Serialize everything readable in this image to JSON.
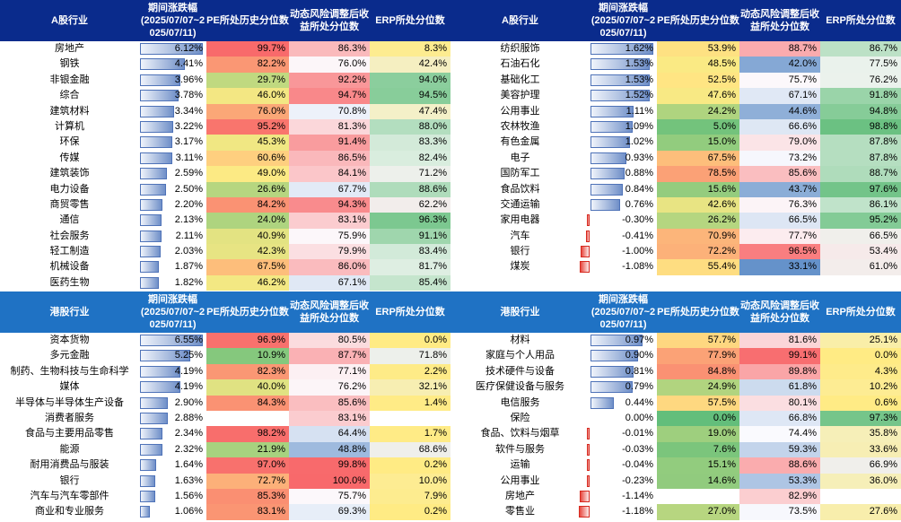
{
  "headers": {
    "a_industry": "A股行业",
    "h_industry": "港股行业",
    "change": "期间涨跌幅 (2025/07/07~2 025/07/11)",
    "pe": "PE所处历史分位数",
    "risk": "动态风险调整后收益所处分位数",
    "erp": "ERP所处分位数"
  },
  "colors": {
    "header_a": "#0a2b8c",
    "header_h": "#1f72c4",
    "bar_pos": "#6f8fc8",
    "bar_neg": "#e8483f"
  },
  "tables": {
    "a_left": [
      {
        "name": "房地产",
        "chg": "6.12%",
        "chg_num": 6.12,
        "pe": "99.7%",
        "pe_num": 99.7,
        "risk": "86.3%",
        "risk_num": 86.3,
        "erp": "8.3%",
        "erp_num": 8.3
      },
      {
        "name": "钢铁",
        "chg": "4.41%",
        "chg_num": 4.41,
        "pe": "82.2%",
        "pe_num": 82.2,
        "risk": "76.0%",
        "risk_num": 76.0,
        "erp": "42.4%",
        "erp_num": 42.4
      },
      {
        "name": "非银金融",
        "chg": "3.96%",
        "chg_num": 3.96,
        "pe": "29.7%",
        "pe_num": 29.7,
        "risk": "92.2%",
        "risk_num": 92.2,
        "erp": "94.0%",
        "erp_num": 94.0
      },
      {
        "name": "综合",
        "chg": "3.78%",
        "chg_num": 3.78,
        "pe": "46.0%",
        "pe_num": 46.0,
        "risk": "94.7%",
        "risk_num": 94.7,
        "erp": "94.5%",
        "erp_num": 94.5
      },
      {
        "name": "建筑材料",
        "chg": "3.34%",
        "chg_num": 3.34,
        "pe": "76.0%",
        "pe_num": 76.0,
        "risk": "70.8%",
        "risk_num": 70.8,
        "erp": "47.4%",
        "erp_num": 47.4
      },
      {
        "name": "计算机",
        "chg": "3.22%",
        "chg_num": 3.22,
        "pe": "95.2%",
        "pe_num": 95.2,
        "risk": "81.3%",
        "risk_num": 81.3,
        "erp": "88.0%",
        "erp_num": 88.0
      },
      {
        "name": "环保",
        "chg": "3.17%",
        "chg_num": 3.17,
        "pe": "45.3%",
        "pe_num": 45.3,
        "risk": "91.4%",
        "risk_num": 91.4,
        "erp": "83.3%",
        "erp_num": 83.3
      },
      {
        "name": "传媒",
        "chg": "3.11%",
        "chg_num": 3.11,
        "pe": "60.6%",
        "pe_num": 60.6,
        "risk": "86.5%",
        "risk_num": 86.5,
        "erp": "82.4%",
        "erp_num": 82.4
      },
      {
        "name": "建筑装饰",
        "chg": "2.59%",
        "chg_num": 2.59,
        "pe": "49.0%",
        "pe_num": 49.0,
        "risk": "84.1%",
        "risk_num": 84.1,
        "erp": "71.2%",
        "erp_num": 71.2
      },
      {
        "name": "电力设备",
        "chg": "2.50%",
        "chg_num": 2.5,
        "pe": "26.6%",
        "pe_num": 26.6,
        "risk": "67.7%",
        "risk_num": 67.7,
        "erp": "88.6%",
        "erp_num": 88.6
      },
      {
        "name": "商贸零售",
        "chg": "2.20%",
        "chg_num": 2.2,
        "pe": "84.2%",
        "pe_num": 84.2,
        "risk": "94.3%",
        "risk_num": 94.3,
        "erp": "62.2%",
        "erp_num": 62.2
      },
      {
        "name": "通信",
        "chg": "2.13%",
        "chg_num": 2.13,
        "pe": "24.0%",
        "pe_num": 24.0,
        "risk": "83.1%",
        "risk_num": 83.1,
        "erp": "96.3%",
        "erp_num": 96.3
      },
      {
        "name": "社会服务",
        "chg": "2.11%",
        "chg_num": 2.11,
        "pe": "40.9%",
        "pe_num": 40.9,
        "risk": "75.9%",
        "risk_num": 75.9,
        "erp": "91.1%",
        "erp_num": 91.1
      },
      {
        "name": "轻工制造",
        "chg": "2.03%",
        "chg_num": 2.03,
        "pe": "42.3%",
        "pe_num": 42.3,
        "risk": "79.9%",
        "risk_num": 79.9,
        "erp": "83.4%",
        "erp_num": 83.4
      },
      {
        "name": "机械设备",
        "chg": "1.87%",
        "chg_num": 1.87,
        "pe": "67.5%",
        "pe_num": 67.5,
        "risk": "86.0%",
        "risk_num": 86.0,
        "erp": "81.7%",
        "erp_num": 81.7
      },
      {
        "name": "医药生物",
        "chg": "1.82%",
        "chg_num": 1.82,
        "pe": "46.2%",
        "pe_num": 46.2,
        "risk": "67.1%",
        "risk_num": 67.1,
        "erp": "85.4%",
        "erp_num": 85.4
      }
    ],
    "a_right": [
      {
        "name": "纺织服饰",
        "chg": "1.62%",
        "chg_num": 1.62,
        "pe": "53.9%",
        "pe_num": 53.9,
        "risk": "88.7%",
        "risk_num": 88.7,
        "erp": "86.7%",
        "erp_num": 86.7
      },
      {
        "name": "石油石化",
        "chg": "1.53%",
        "chg_num": 1.53,
        "pe": "48.5%",
        "pe_num": 48.5,
        "risk": "42.0%",
        "risk_num": 42.0,
        "erp": "77.5%",
        "erp_num": 77.5
      },
      {
        "name": "基础化工",
        "chg": "1.53%",
        "chg_num": 1.53,
        "pe": "52.5%",
        "pe_num": 52.5,
        "risk": "75.7%",
        "risk_num": 75.7,
        "erp": "76.2%",
        "erp_num": 76.2
      },
      {
        "name": "美容护理",
        "chg": "1.52%",
        "chg_num": 1.52,
        "pe": "47.6%",
        "pe_num": 47.6,
        "risk": "67.1%",
        "risk_num": 67.1,
        "erp": "91.8%",
        "erp_num": 91.8
      },
      {
        "name": "公用事业",
        "chg": "1.11%",
        "chg_num": 1.11,
        "pe": "24.2%",
        "pe_num": 24.2,
        "risk": "44.6%",
        "risk_num": 44.6,
        "erp": "94.8%",
        "erp_num": 94.8
      },
      {
        "name": "农林牧渔",
        "chg": "1.09%",
        "chg_num": 1.09,
        "pe": "5.0%",
        "pe_num": 5.0,
        "risk": "66.6%",
        "risk_num": 66.6,
        "erp": "98.8%",
        "erp_num": 98.8
      },
      {
        "name": "有色金属",
        "chg": "1.02%",
        "chg_num": 1.02,
        "pe": "15.0%",
        "pe_num": 15.0,
        "risk": "79.0%",
        "risk_num": 79.0,
        "erp": "87.8%",
        "erp_num": 87.8
      },
      {
        "name": "电子",
        "chg": "0.93%",
        "chg_num": 0.93,
        "pe": "67.5%",
        "pe_num": 67.5,
        "risk": "73.2%",
        "risk_num": 73.2,
        "erp": "87.8%",
        "erp_num": 87.8
      },
      {
        "name": "国防军工",
        "chg": "0.88%",
        "chg_num": 0.88,
        "pe": "78.5%",
        "pe_num": 78.5,
        "risk": "85.6%",
        "risk_num": 85.6,
        "erp": "88.7%",
        "erp_num": 88.7
      },
      {
        "name": "食品饮料",
        "chg": "0.84%",
        "chg_num": 0.84,
        "pe": "15.6%",
        "pe_num": 15.6,
        "risk": "43.7%",
        "risk_num": 43.7,
        "erp": "97.6%",
        "erp_num": 97.6
      },
      {
        "name": "交通运输",
        "chg": "0.76%",
        "chg_num": 0.76,
        "pe": "42.6%",
        "pe_num": 42.6,
        "risk": "76.3%",
        "risk_num": 76.3,
        "erp": "86.1%",
        "erp_num": 86.1
      },
      {
        "name": "家用电器",
        "chg": "-0.30%",
        "chg_num": -0.3,
        "pe": "26.2%",
        "pe_num": 26.2,
        "risk": "66.5%",
        "risk_num": 66.5,
        "erp": "95.2%",
        "erp_num": 95.2
      },
      {
        "name": "汽车",
        "chg": "-0.41%",
        "chg_num": -0.41,
        "pe": "70.9%",
        "pe_num": 70.9,
        "risk": "77.7%",
        "risk_num": 77.7,
        "erp": "66.5%",
        "erp_num": 66.5
      },
      {
        "name": "银行",
        "chg": "-1.00%",
        "chg_num": -1.0,
        "pe": "72.2%",
        "pe_num": 72.2,
        "risk": "96.5%",
        "risk_num": 96.5,
        "erp": "53.4%",
        "erp_num": 53.4
      },
      {
        "name": "煤炭",
        "chg": "-1.08%",
        "chg_num": -1.08,
        "pe": "55.4%",
        "pe_num": 55.4,
        "risk": "33.1%",
        "risk_num": 33.1,
        "erp": "61.0%",
        "erp_num": 61.0
      }
    ],
    "h_left": [
      {
        "name": "资本货物",
        "chg": "6.55%",
        "chg_num": 6.55,
        "pe": "96.9%",
        "pe_num": 96.9,
        "risk": "80.5%",
        "risk_num": 80.5,
        "erp": "0.0%",
        "erp_num": 0.0
      },
      {
        "name": "多元金融",
        "chg": "5.25%",
        "chg_num": 5.25,
        "pe": "10.9%",
        "pe_num": 10.9,
        "risk": "87.7%",
        "risk_num": 87.7,
        "erp": "71.8%",
        "erp_num": 71.8
      },
      {
        "name": "制药、生物科技与生命科学",
        "chg": "4.19%",
        "chg_num": 4.19,
        "pe": "82.3%",
        "pe_num": 82.3,
        "risk": "77.1%",
        "risk_num": 77.1,
        "erp": "2.2%",
        "erp_num": 2.2
      },
      {
        "name": "媒体",
        "chg": "4.19%",
        "chg_num": 4.19,
        "pe": "40.0%",
        "pe_num": 40.0,
        "risk": "76.2%",
        "risk_num": 76.2,
        "erp": "32.1%",
        "erp_num": 32.1
      },
      {
        "name": "半导体与半导体生产设备",
        "chg": "2.90%",
        "chg_num": 2.9,
        "pe": "84.3%",
        "pe_num": 84.3,
        "risk": "85.6%",
        "risk_num": 85.6,
        "erp": "1.4%",
        "erp_num": 1.4
      },
      {
        "name": "消费者服务",
        "chg": "2.88%",
        "chg_num": 2.88,
        "pe": "",
        "pe_num": null,
        "risk": "83.1%",
        "risk_num": 83.1,
        "erp": "",
        "erp_num": null
      },
      {
        "name": "食品与主要用品零售",
        "chg": "2.34%",
        "chg_num": 2.34,
        "pe": "98.2%",
        "pe_num": 98.2,
        "risk": "64.4%",
        "risk_num": 64.4,
        "erp": "1.7%",
        "erp_num": 1.7
      },
      {
        "name": "能源",
        "chg": "2.32%",
        "chg_num": 2.32,
        "pe": "21.9%",
        "pe_num": 21.9,
        "risk": "48.8%",
        "risk_num": 48.8,
        "erp": "68.6%",
        "erp_num": 68.6
      },
      {
        "name": "耐用消费品与服装",
        "chg": "1.64%",
        "chg_num": 1.64,
        "pe": "97.0%",
        "pe_num": 97.0,
        "risk": "99.8%",
        "risk_num": 99.8,
        "erp": "0.2%",
        "erp_num": 0.2
      },
      {
        "name": "银行",
        "chg": "1.63%",
        "chg_num": 1.63,
        "pe": "72.7%",
        "pe_num": 72.7,
        "risk": "100.0%",
        "risk_num": 100.0,
        "erp": "10.0%",
        "erp_num": 10.0
      },
      {
        "name": "汽车与汽车零部件",
        "chg": "1.56%",
        "chg_num": 1.56,
        "pe": "85.3%",
        "pe_num": 85.3,
        "risk": "75.7%",
        "risk_num": 75.7,
        "erp": "7.9%",
        "erp_num": 7.9
      },
      {
        "name": "商业和专业服务",
        "chg": "1.06%",
        "chg_num": 1.06,
        "pe": "83.1%",
        "pe_num": 83.1,
        "risk": "69.3%",
        "risk_num": 69.3,
        "erp": "0.2%",
        "erp_num": 0.2
      }
    ],
    "h_right": [
      {
        "name": "材料",
        "chg": "0.97%",
        "chg_num": 0.97,
        "pe": "57.7%",
        "pe_num": 57.7,
        "risk": "81.6%",
        "risk_num": 81.6,
        "erp": "25.1%",
        "erp_num": 25.1
      },
      {
        "name": "家庭与个人用品",
        "chg": "0.90%",
        "chg_num": 0.9,
        "pe": "77.9%",
        "pe_num": 77.9,
        "risk": "99.1%",
        "risk_num": 99.1,
        "erp": "0.0%",
        "erp_num": 0.0
      },
      {
        "name": "技术硬件与设备",
        "chg": "0.81%",
        "chg_num": 0.81,
        "pe": "84.8%",
        "pe_num": 84.8,
        "risk": "89.8%",
        "risk_num": 89.8,
        "erp": "4.3%",
        "erp_num": 4.3
      },
      {
        "name": "医疗保健设备与服务",
        "chg": "0.79%",
        "chg_num": 0.79,
        "pe": "24.9%",
        "pe_num": 24.9,
        "risk": "61.8%",
        "risk_num": 61.8,
        "erp": "10.2%",
        "erp_num": 10.2
      },
      {
        "name": "电信服务",
        "chg": "0.44%",
        "chg_num": 0.44,
        "pe": "57.5%",
        "pe_num": 57.5,
        "risk": "80.1%",
        "risk_num": 80.1,
        "erp": "0.6%",
        "erp_num": 0.6
      },
      {
        "name": "保险",
        "chg": "0.00%",
        "chg_num": 0.0,
        "pe": "0.0%",
        "pe_num": 0.0,
        "risk": "66.8%",
        "risk_num": 66.8,
        "erp": "97.3%",
        "erp_num": 97.3
      },
      {
        "name": "食品、饮料与烟草",
        "chg": "-0.01%",
        "chg_num": -0.01,
        "pe": "19.0%",
        "pe_num": 19.0,
        "risk": "74.4%",
        "risk_num": 74.4,
        "erp": "35.8%",
        "erp_num": 35.8
      },
      {
        "name": "软件与服务",
        "chg": "-0.03%",
        "chg_num": -0.03,
        "pe": "7.6%",
        "pe_num": 7.6,
        "risk": "59.3%",
        "risk_num": 59.3,
        "erp": "33.6%",
        "erp_num": 33.6
      },
      {
        "name": "运输",
        "chg": "-0.04%",
        "chg_num": -0.04,
        "pe": "15.1%",
        "pe_num": 15.1,
        "risk": "88.6%",
        "risk_num": 88.6,
        "erp": "66.9%",
        "erp_num": 66.9
      },
      {
        "name": "公用事业",
        "chg": "-0.23%",
        "chg_num": -0.23,
        "pe": "14.6%",
        "pe_num": 14.6,
        "risk": "53.3%",
        "risk_num": 53.3,
        "erp": "36.0%",
        "erp_num": 36.0
      },
      {
        "name": "房地产",
        "chg": "-1.14%",
        "chg_num": -1.14,
        "pe": "",
        "pe_num": null,
        "risk": "82.9%",
        "risk_num": 82.9,
        "erp": "",
        "erp_num": null
      },
      {
        "name": "零售业",
        "chg": "-1.18%",
        "chg_num": -1.18,
        "pe": "27.0%",
        "pe_num": 27.0,
        "risk": "73.5%",
        "risk_num": 73.5,
        "erp": "27.6%",
        "erp_num": 27.6
      }
    ]
  }
}
